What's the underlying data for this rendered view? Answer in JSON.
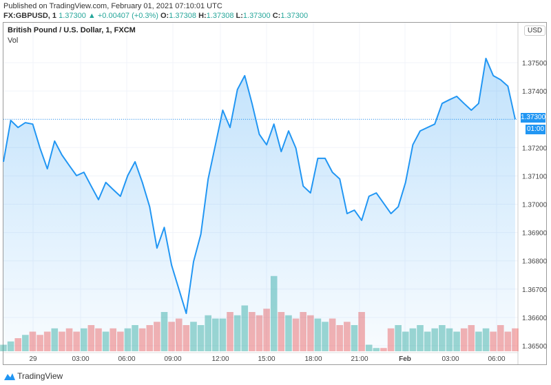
{
  "header": {
    "published": "Published on TradingView.com, February 01, 2021 07:10:01 UTC",
    "symbol": "FX:GBPUSD, 1",
    "last": "1.37300",
    "arrow": "▲",
    "change": "+0.00407 (+0.3%)",
    "o_label": "O:",
    "o": "1.37308",
    "h_label": "H:",
    "h": "1.37308",
    "l_label": "L:",
    "l": "1.37300",
    "c_label": "C:",
    "c": "1.37300"
  },
  "legend": {
    "title": "British Pound / U.S. Dollar, 1, FXCM",
    "vol": "Vol"
  },
  "currency_badge": "USD",
  "last_price_label": "1.37300",
  "countdown": "01:00",
  "footer": {
    "brand": "TradingView"
  },
  "colors": {
    "line": "#2196f3",
    "up": "#26a69a",
    "down": "#ef5350",
    "badge": "#2196f3"
  },
  "chart_data": {
    "type": "area",
    "yticks": [
      "1.37500",
      "1.37400",
      "1.37300",
      "1.37200",
      "1.37100",
      "1.37000",
      "1.36900",
      "1.36800",
      "1.36700",
      "1.36600",
      "1.36500"
    ],
    "ylim": [
      1.3648,
      1.376
    ],
    "xticks": [
      "29",
      "03:00",
      "06:00",
      "09:00",
      "12:00",
      "15:00",
      "18:00",
      "21:00",
      "Feb",
      "03:00",
      "06:00"
    ],
    "close": [
      1.3715,
      1.37296,
      1.37271,
      1.37288,
      1.37283,
      1.37198,
      1.37125,
      1.37223,
      1.37174,
      1.37137,
      1.37101,
      1.37113,
      1.37064,
      1.37016,
      1.37077,
      1.37052,
      1.37028,
      1.37101,
      1.3715,
      1.37077,
      1.36991,
      1.36845,
      1.36918,
      1.36785,
      1.367,
      1.36614,
      1.36797,
      1.36894,
      1.37089,
      1.3721,
      1.37332,
      1.37271,
      1.37405,
      1.37454,
      1.37356,
      1.37247,
      1.3721,
      1.37283,
      1.37186,
      1.37259,
      1.37198,
      1.37064,
      1.3704,
      1.37162,
      1.37162,
      1.37113,
      1.37089,
      1.36967,
      1.36979,
      1.36943,
      1.37028,
      1.3704,
      1.37004,
      1.36967,
      1.36991,
      1.37077,
      1.3721,
      1.37259,
      1.37271,
      1.37283,
      1.37356,
      1.37369,
      1.37381,
      1.37356,
      1.37332,
      1.37356,
      1.37515,
      1.37454,
      1.3744,
      1.37417,
      1.373
    ],
    "volume": [
      10,
      15,
      20,
      25,
      30,
      25,
      30,
      35,
      30,
      35,
      30,
      35,
      40,
      35,
      30,
      35,
      30,
      35,
      40,
      35,
      40,
      45,
      60,
      45,
      50,
      40,
      45,
      40,
      55,
      50,
      50,
      60,
      55,
      70,
      60,
      55,
      65,
      115,
      60,
      55,
      50,
      60,
      55,
      50,
      45,
      50,
      40,
      45,
      40,
      60,
      10,
      5,
      5,
      35,
      40,
      30,
      35,
      40,
      30,
      35,
      40,
      35,
      30,
      35,
      40,
      30,
      35,
      30,
      40,
      30,
      35
    ],
    "grid": true
  }
}
